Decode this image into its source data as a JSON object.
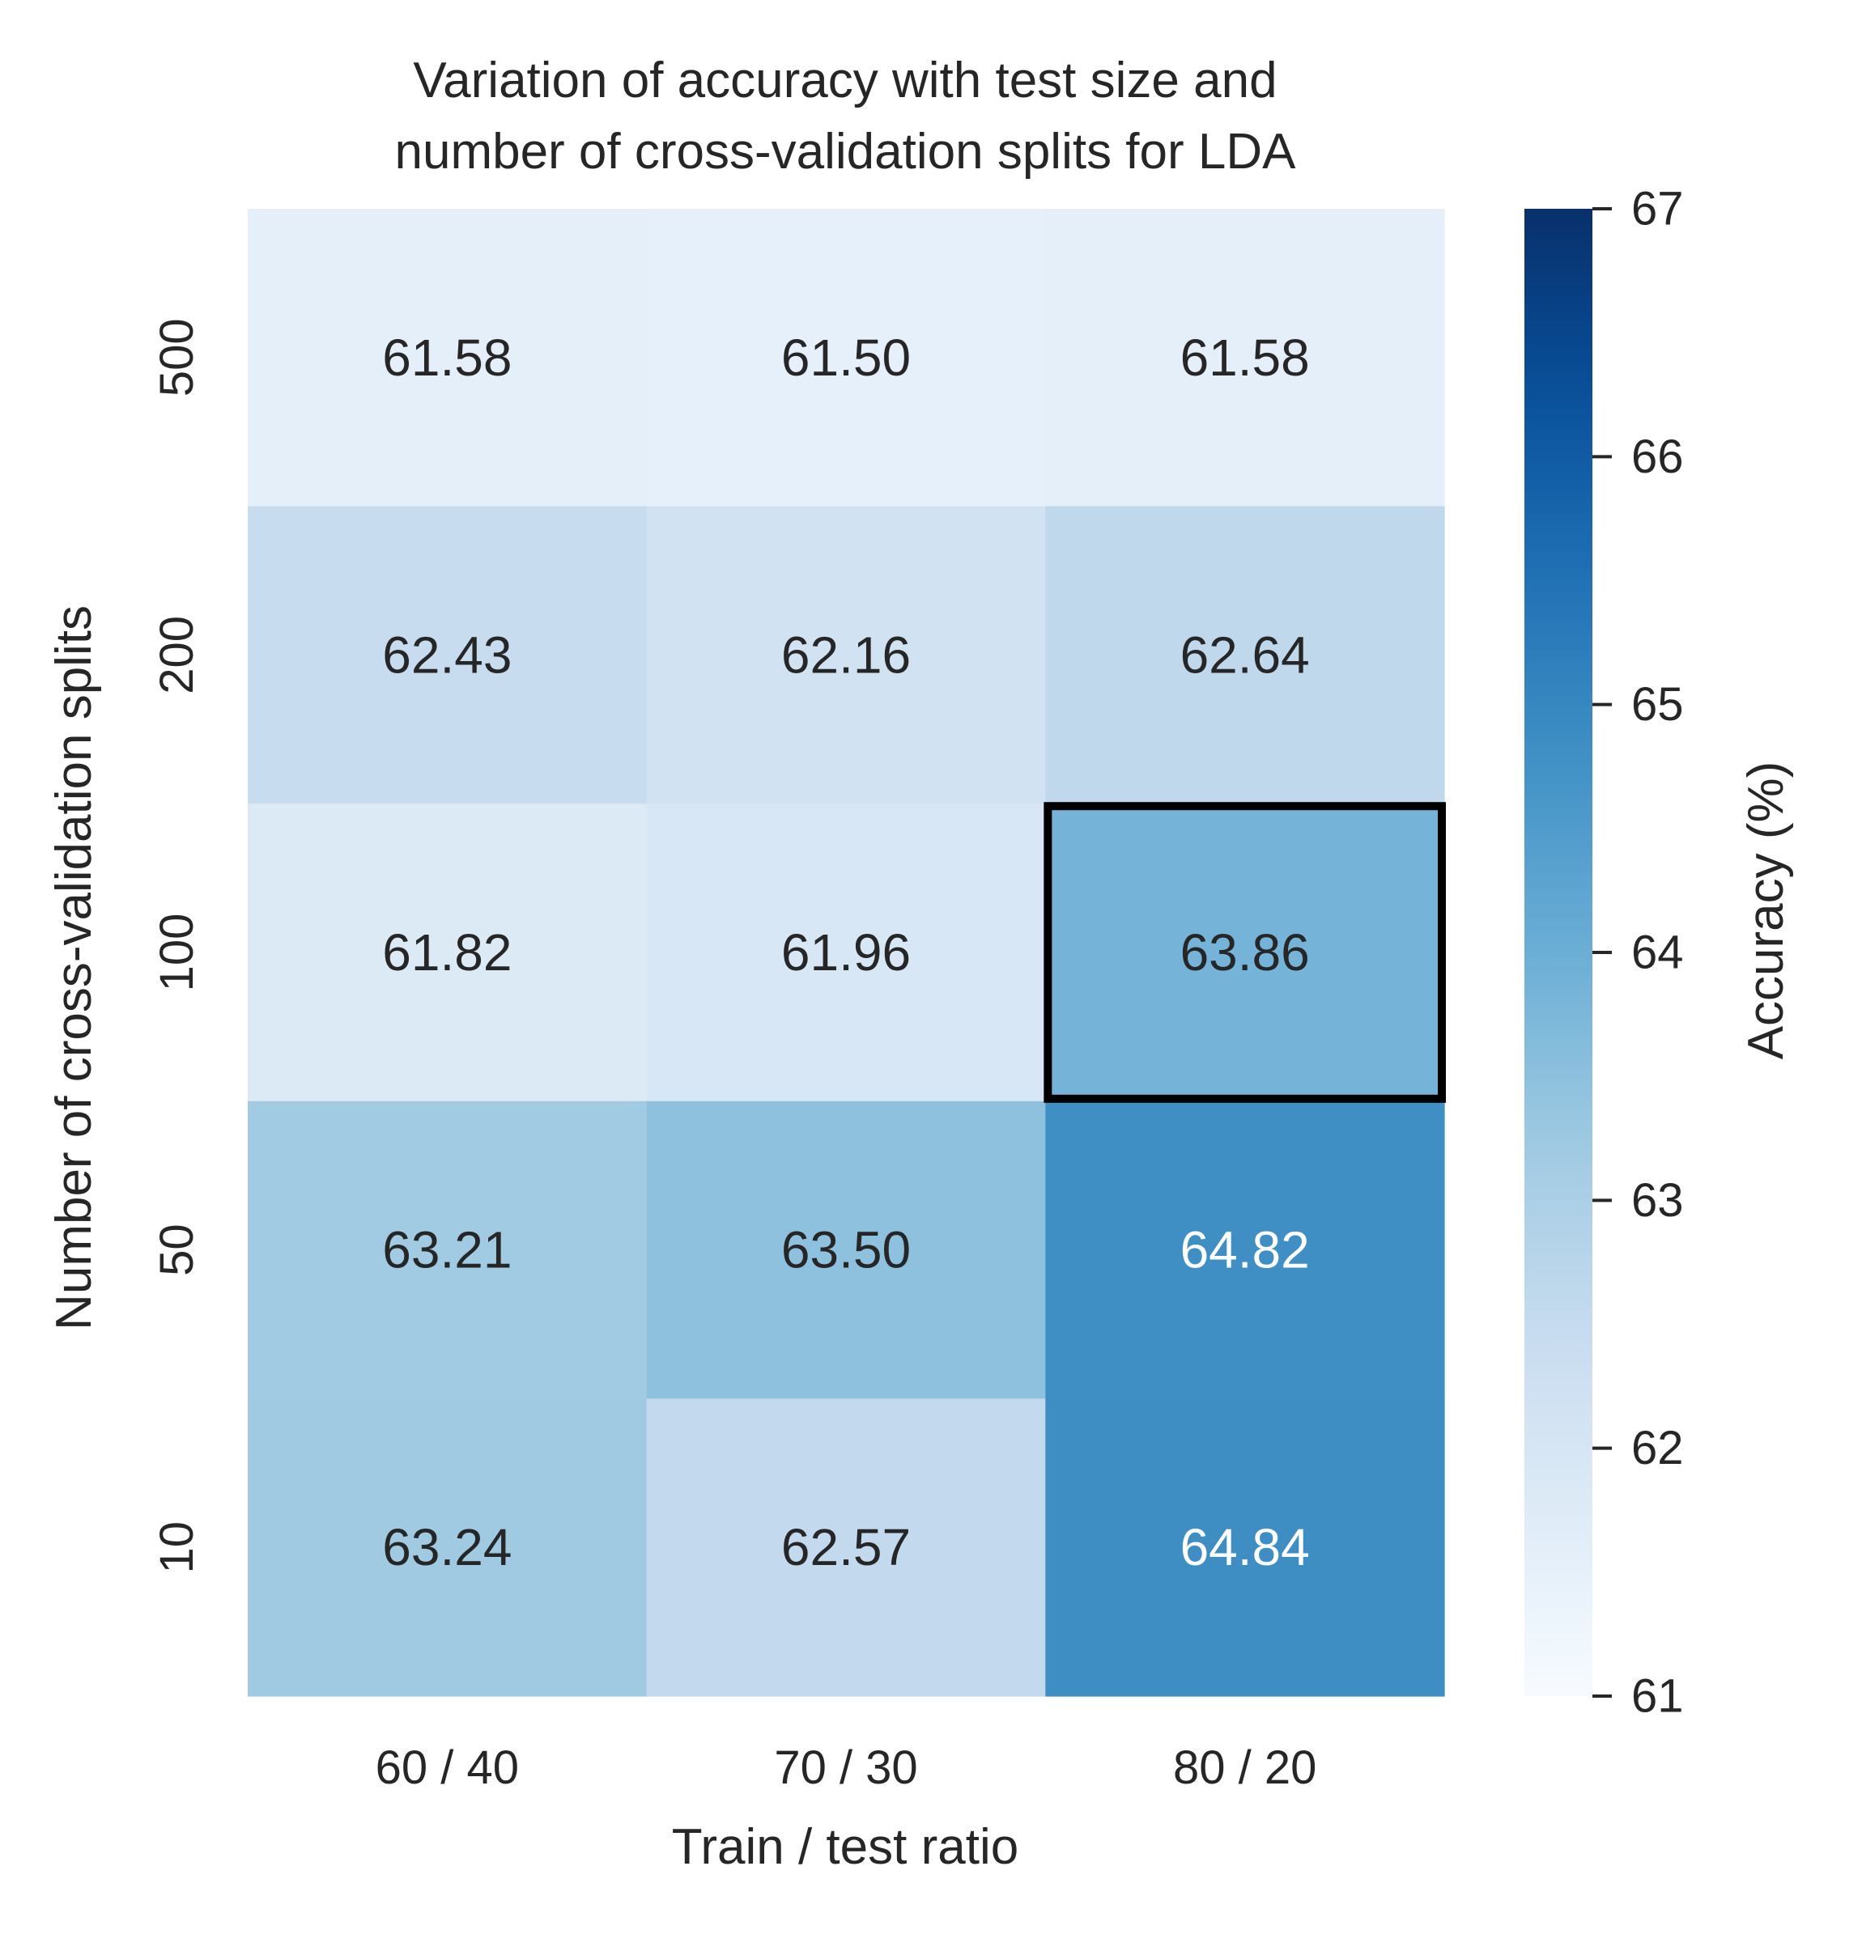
{
  "chart_data": {
    "type": "heatmap",
    "title": "Variation of accuracy with test size and\nnumber of cross-validation splits for LDA",
    "xlabel": "Train / test ratio",
    "ylabel": "Number of cross-validation splits",
    "x_categories": [
      "60 / 40",
      "70 / 30",
      "80 / 20"
    ],
    "y_categories": [
      "500",
      "200",
      "100",
      "50",
      "10"
    ],
    "values": [
      [
        61.58,
        61.5,
        61.58
      ],
      [
        62.43,
        62.16,
        62.64
      ],
      [
        61.82,
        61.96,
        63.86
      ],
      [
        63.21,
        63.5,
        64.82
      ],
      [
        63.24,
        62.57,
        64.84
      ]
    ],
    "value_labels": [
      [
        "61.58",
        "61.50",
        "61.58"
      ],
      [
        "62.43",
        "62.16",
        "62.64"
      ],
      [
        "61.82",
        "61.96",
        "63.86"
      ],
      [
        "63.21",
        "63.50",
        "64.82"
      ],
      [
        "63.24",
        "62.57",
        "64.84"
      ]
    ],
    "colormap": "Blues",
    "vmin": 61,
    "vmax": 67,
    "highlighted_cell": {
      "row": 2,
      "col": 2
    },
    "colorbar": {
      "label": "Accuracy (%)",
      "ticks": [
        "61",
        "62",
        "63",
        "64",
        "65",
        "66",
        "67"
      ]
    },
    "grid": false
  }
}
